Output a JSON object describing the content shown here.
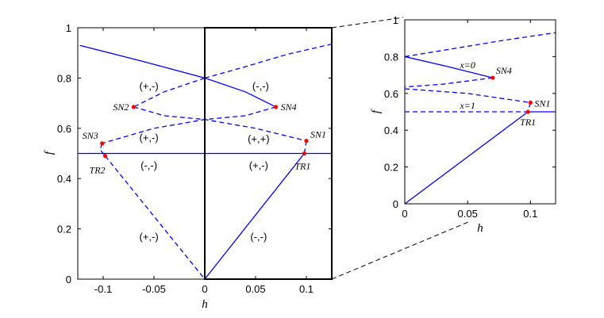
{
  "chart_data": [
    {
      "type": "line",
      "title": "",
      "xlabel": "h",
      "ylabel": "f",
      "xlim": [
        -0.125,
        0.125
      ],
      "ylim": [
        0,
        1
      ],
      "xticks": [
        -0.1,
        -0.05,
        0,
        0.05,
        0.1
      ],
      "xtick_labels": [
        "-0.1",
        "-0.05",
        "0",
        "0.05",
        "0.1"
      ],
      "yticks": [
        0,
        0.2,
        0.4,
        0.6,
        0.8,
        1
      ],
      "ytick_labels": [
        "0",
        "0.2",
        "0.4",
        "0.6",
        "0.8",
        "1"
      ],
      "grid": false,
      "line_color": "#0000ff",
      "marker_color": "#ff0000",
      "series": [
        {
          "style": "solid",
          "x": [
            -0.123,
            -0.06,
            0,
            0.04,
            0.07
          ],
          "y": [
            0.93,
            0.865,
            0.8,
            0.745,
            0.685
          ]
        },
        {
          "style": "dashed",
          "x": [
            0,
            0.04,
            0.08,
            0.125
          ],
          "y": [
            0.8,
            0.845,
            0.893,
            0.935
          ]
        },
        {
          "style": "dashed",
          "x": [
            0,
            -0.04,
            -0.07
          ],
          "y": [
            0.8,
            0.745,
            0.685
          ]
        },
        {
          "style": "dashed",
          "x": [
            -0.07,
            -0.04,
            0,
            0.05,
            0.1
          ],
          "y": [
            0.685,
            0.65,
            0.635,
            0.6,
            0.55
          ]
        },
        {
          "style": "dashed",
          "x": [
            0.07,
            0.04,
            0,
            -0.05,
            -0.101
          ],
          "y": [
            0.685,
            0.65,
            0.635,
            0.6,
            0.54
          ]
        },
        {
          "style": "dashed",
          "x": [
            -0.101,
            -0.103,
            -0.098
          ],
          "y": [
            0.54,
            0.515,
            0.49
          ]
        },
        {
          "style": "dashed",
          "x": [
            0.1,
            0.098
          ],
          "y": [
            0.55,
            0.5
          ]
        },
        {
          "style": "solid",
          "x": [
            -0.125,
            0.125
          ],
          "y": [
            0.5,
            0.5
          ]
        },
        {
          "style": "dashed",
          "x": [
            -0.098,
            0
          ],
          "y": [
            0.49,
            0
          ]
        },
        {
          "style": "solid",
          "x": [
            0,
            0.098
          ],
          "y": [
            0,
            0.5
          ]
        }
      ],
      "vertical_line_x": 0,
      "points": [
        {
          "label": "SN1",
          "x": 0.1,
          "y": 0.55
        },
        {
          "label": "SN2",
          "x": -0.07,
          "y": 0.685
        },
        {
          "label": "SN3",
          "x": -0.101,
          "y": 0.54
        },
        {
          "label": "SN4",
          "x": 0.07,
          "y": 0.685
        },
        {
          "label": "TR1",
          "x": 0.098,
          "y": 0.5
        },
        {
          "label": "TR2",
          "x": -0.098,
          "y": 0.49
        }
      ],
      "region_labels": [
        {
          "text": "(+,-)",
          "x": -0.055,
          "y": 0.77
        },
        {
          "text": "(-,-)",
          "x": 0.055,
          "y": 0.77
        },
        {
          "text": "(+,-)",
          "x": -0.055,
          "y": 0.565
        },
        {
          "text": "(+,+)",
          "x": 0.053,
          "y": 0.56
        },
        {
          "text": "(-,-)",
          "x": -0.055,
          "y": 0.455
        },
        {
          "text": "(+,-)",
          "x": 0.053,
          "y": 0.455
        },
        {
          "text": "(+,-)",
          "x": -0.055,
          "y": 0.17
        },
        {
          "text": "(-,-)",
          "x": 0.053,
          "y": 0.17
        }
      ],
      "zoom_box": {
        "x": [
          0,
          0.125
        ],
        "y": [
          0,
          1
        ]
      }
    },
    {
      "type": "line",
      "title": "",
      "xlabel": "h",
      "ylabel": "f",
      "xlim": [
        0,
        0.12
      ],
      "ylim": [
        0,
        1
      ],
      "xticks": [
        0,
        0.05,
        0.1
      ],
      "xtick_labels": [
        "0",
        "0.05",
        "0.1"
      ],
      "yticks": [
        0,
        0.2,
        0.4,
        0.6,
        0.8,
        1
      ],
      "ytick_labels": [
        "0",
        "0.2",
        "0.4",
        "0.6",
        "0.8",
        "1"
      ],
      "grid": false,
      "line_color": "#0000ff",
      "marker_color": "#ff0000",
      "series": [
        {
          "style": "dashed",
          "x": [
            0,
            0.04,
            0.08,
            0.12
          ],
          "y": [
            0.8,
            0.845,
            0.89,
            0.93
          ]
        },
        {
          "style": "solid",
          "x": [
            0,
            0.035,
            0.07
          ],
          "y": [
            0.8,
            0.745,
            0.685
          ]
        },
        {
          "style": "dashed",
          "x": [
            0.07,
            0.03,
            0
          ],
          "y": [
            0.685,
            0.65,
            0.635
          ]
        },
        {
          "style": "dashed",
          "x": [
            0,
            0.05,
            0.1
          ],
          "y": [
            0.625,
            0.6,
            0.55
          ]
        },
        {
          "style": "dashed",
          "x": [
            0.1,
            0.098
          ],
          "y": [
            0.55,
            0.5
          ]
        },
        {
          "style": "dashed",
          "x": [
            0,
            0.098
          ],
          "y": [
            0.5,
            0.5
          ]
        },
        {
          "style": "solid",
          "x": [
            0.098,
            0.12
          ],
          "y": [
            0.5,
            0.5
          ]
        },
        {
          "style": "solid",
          "x": [
            0,
            0.098
          ],
          "y": [
            0,
            0.5
          ]
        }
      ],
      "points": [
        {
          "label": "SN4",
          "x": 0.07,
          "y": 0.685
        },
        {
          "label": "SN1",
          "x": 0.1,
          "y": 0.55
        },
        {
          "label": "TR1",
          "x": 0.098,
          "y": 0.5
        }
      ],
      "annotations": [
        {
          "text": "x=0",
          "x": 0.05,
          "y": 0.755
        },
        {
          "text": "x=1",
          "x": 0.05,
          "y": 0.535
        }
      ]
    }
  ]
}
